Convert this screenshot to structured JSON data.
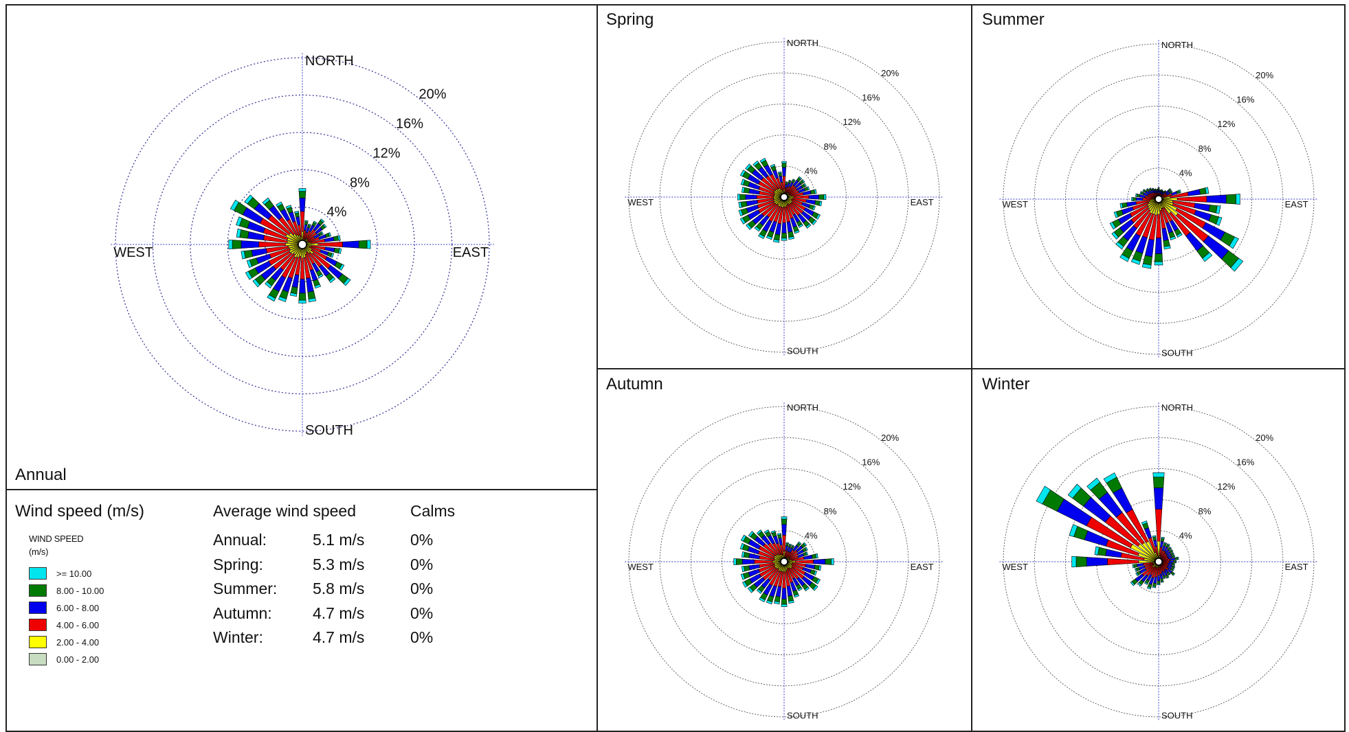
{
  "legend": {
    "heading": "Wind speed (m/s)",
    "sub_line1": "WIND SPEED",
    "sub_line2": "(m/s)",
    "classes": [
      {
        "label": ">= 10.00",
        "color": "#00e5ee"
      },
      {
        "label": "8.00 - 10.00",
        "color": "#007a00"
      },
      {
        "label": "6.00 - 8.00",
        "color": "#0000ee"
      },
      {
        "label": "4.00 - 6.00",
        "color": "#ee0000"
      },
      {
        "label": "2.00 - 4.00",
        "color": "#ffff00"
      },
      {
        "label": "0.00 - 2.00",
        "color": "#c7dcc0"
      }
    ]
  },
  "stats": {
    "avg_heading": "Average wind speed",
    "calms_heading": "Calms",
    "rows": [
      {
        "period": "Annual:",
        "speed": "5.1 m/s",
        "calms": "0%"
      },
      {
        "period": "Spring:",
        "speed": "5.3 m/s",
        "calms": "0%"
      },
      {
        "period": "Summer:",
        "speed": "5.8 m/s",
        "calms": "0%"
      },
      {
        "period": "Autumn:",
        "speed": "4.7 m/s",
        "calms": "0%"
      },
      {
        "period": "Winter:",
        "speed": "4.7 m/s",
        "calms": "0%"
      }
    ]
  },
  "chart_data": [
    {
      "type": "wind-rose",
      "title": "Annual",
      "direction_labels": [
        "NORTH",
        "EAST",
        "SOUTH",
        "WEST"
      ],
      "ring_labels": [
        "4%",
        "8%",
        "12%",
        "16%",
        "20%"
      ],
      "rings": [
        4,
        8,
        12,
        16,
        20
      ],
      "speed_classes": [
        ">= 10.00",
        "8.00 - 10.00",
        "6.00 - 8.00",
        "4.00 - 6.00",
        "2.00 - 4.00",
        "0.00 - 2.00"
      ],
      "directions_deg": [
        0,
        10,
        20,
        30,
        40,
        50,
        60,
        70,
        80,
        90,
        100,
        110,
        120,
        130,
        140,
        150,
        160,
        170,
        180,
        190,
        200,
        210,
        220,
        230,
        240,
        250,
        260,
        270,
        280,
        290,
        300,
        310,
        320,
        330,
        340,
        350
      ],
      "totals_pct": [
        6.0,
        2.6,
        2.3,
        2.8,
        3.4,
        3.2,
        2.5,
        3.2,
        4.1,
        7.3,
        4.2,
        3.5,
        5.0,
        6.4,
        5.1,
        4.0,
        4.9,
        6.2,
        6.3,
        5.6,
        6.4,
        6.8,
        5.8,
        6.6,
        6.8,
        6.2,
        6.6,
        7.9,
        7.1,
        7.4,
        8.6,
        7.7,
        6.2,
        5.1,
        4.4,
        3.6
      ]
    },
    {
      "type": "wind-rose",
      "title": "Spring",
      "direction_labels": [
        "NORTH",
        "EAST",
        "SOUTH",
        "WEST"
      ],
      "ring_labels": [
        "4%",
        "8%",
        "12%",
        "16%",
        "20%"
      ],
      "rings": [
        4,
        8,
        12,
        16,
        20
      ],
      "speed_classes": [
        ">= 10.00",
        "8.00 - 10.00",
        "6.00 - 8.00",
        "4.00 - 6.00",
        "2.00 - 4.00",
        "0.00 - 2.00"
      ],
      "directions_deg": [
        0,
        10,
        20,
        30,
        40,
        50,
        60,
        70,
        80,
        90,
        100,
        110,
        120,
        130,
        140,
        150,
        160,
        170,
        180,
        190,
        200,
        210,
        220,
        230,
        240,
        250,
        260,
        270,
        280,
        290,
        300,
        310,
        320,
        330,
        340,
        350
      ],
      "totals_pct": [
        4.6,
        2.0,
        2.3,
        2.6,
        3.3,
        3.3,
        3.2,
        3.4,
        4.2,
        5.4,
        4.9,
        4.2,
        5.2,
        5.2,
        5.0,
        4.4,
        4.9,
        5.5,
        5.6,
        5.9,
        5.7,
        6.0,
        5.5,
        6.1,
        6.3,
        6.1,
        5.9,
        6.0,
        5.5,
        5.8,
        6.3,
        6.2,
        5.8,
        5.6,
        4.4,
        3.3
      ]
    },
    {
      "type": "wind-rose",
      "title": "Summer",
      "direction_labels": [
        "NORTH",
        "EAST",
        "SOUTH",
        "WEST"
      ],
      "ring_labels": [
        "4%",
        "8%",
        "12%",
        "16%",
        "20%"
      ],
      "rings": [
        4,
        8,
        12,
        16,
        20
      ],
      "speed_classes": [
        ">= 10.00",
        "8.00 - 10.00",
        "6.00 - 8.00",
        "4.00 - 6.00",
        "2.00 - 4.00",
        "0.00 - 2.00"
      ],
      "directions_deg": [
        0,
        10,
        20,
        30,
        40,
        50,
        60,
        70,
        80,
        90,
        100,
        110,
        120,
        130,
        140,
        150,
        160,
        170,
        180,
        190,
        200,
        210,
        220,
        230,
        240,
        250,
        260,
        270,
        280,
        290,
        300,
        310,
        320,
        330,
        340,
        350
      ],
      "totals_pct": [
        1.5,
        1.2,
        1.3,
        1.2,
        1.4,
        2.0,
        2.0,
        3.0,
        6.5,
        10.5,
        8.0,
        8.5,
        11.5,
        13.5,
        10.0,
        5.5,
        5.5,
        6.5,
        8.5,
        9.0,
        8.8,
        9.0,
        8.0,
        7.5,
        7.0,
        6.0,
        5.0,
        3.5,
        3.0,
        2.5,
        2.3,
        2.0,
        1.8,
        1.6,
        1.4,
        1.3
      ]
    },
    {
      "type": "wind-rose",
      "title": "Autumn",
      "direction_labels": [
        "NORTH",
        "EAST",
        "SOUTH",
        "WEST"
      ],
      "ring_labels": [
        "4%",
        "8%",
        "12%",
        "16%",
        "20%"
      ],
      "rings": [
        4,
        8,
        12,
        16,
        20
      ],
      "speed_classes": [
        ">= 10.00",
        "8.00 - 10.00",
        "6.00 - 8.00",
        "4.00 - 6.00",
        "2.00 - 4.00",
        "0.00 - 2.00"
      ],
      "directions_deg": [
        0,
        10,
        20,
        30,
        40,
        50,
        60,
        70,
        80,
        90,
        100,
        110,
        120,
        130,
        140,
        150,
        160,
        170,
        180,
        190,
        200,
        210,
        220,
        230,
        240,
        250,
        260,
        270,
        280,
        290,
        300,
        310,
        320,
        330,
        340,
        350
      ],
      "totals_pct": [
        5.8,
        2.5,
        2.4,
        2.4,
        3.2,
        3.6,
        3.4,
        3.2,
        4.4,
        6.4,
        4.8,
        4.4,
        5.2,
        5.4,
        4.7,
        4.2,
        4.8,
        5.4,
        5.8,
        5.5,
        5.7,
        5.8,
        5.1,
        5.8,
        6.0,
        5.8,
        5.5,
        6.5,
        5.5,
        5.9,
        6.2,
        5.7,
        5.1,
        4.6,
        4.2,
        3.7
      ]
    },
    {
      "type": "wind-rose",
      "title": "Winter",
      "direction_labels": [
        "NORTH",
        "EAST",
        "SOUTH",
        "WEST"
      ],
      "ring_labels": [
        "4%",
        "8%",
        "12%",
        "16%",
        "20%"
      ],
      "rings": [
        4,
        8,
        12,
        16,
        20
      ],
      "speed_classes": [
        ">= 10.00",
        "8.00 - 10.00",
        "6.00 - 8.00",
        "4.00 - 6.00",
        "2.00 - 4.00",
        "0.00 - 2.00"
      ],
      "directions_deg": [
        0,
        10,
        20,
        30,
        40,
        50,
        60,
        70,
        80,
        90,
        100,
        110,
        120,
        130,
        140,
        150,
        160,
        170,
        180,
        190,
        200,
        210,
        220,
        230,
        240,
        250,
        260,
        270,
        280,
        290,
        300,
        310,
        320,
        330,
        340,
        350
      ],
      "totals_pct": [
        11.5,
        3.2,
        2.6,
        2.6,
        2.4,
        2.3,
        2.2,
        2.2,
        2.6,
        2.3,
        2.1,
        2.2,
        2.2,
        2.6,
        2.2,
        2.4,
        2.3,
        2.7,
        3.0,
        3.4,
        3.7,
        3.3,
        3.9,
        4.5,
        3.3,
        3.2,
        3.4,
        11.2,
        8.3,
        12.0,
        17.6,
        14.5,
        13.4,
        12.8,
        5.5,
        3.4
      ]
    }
  ]
}
